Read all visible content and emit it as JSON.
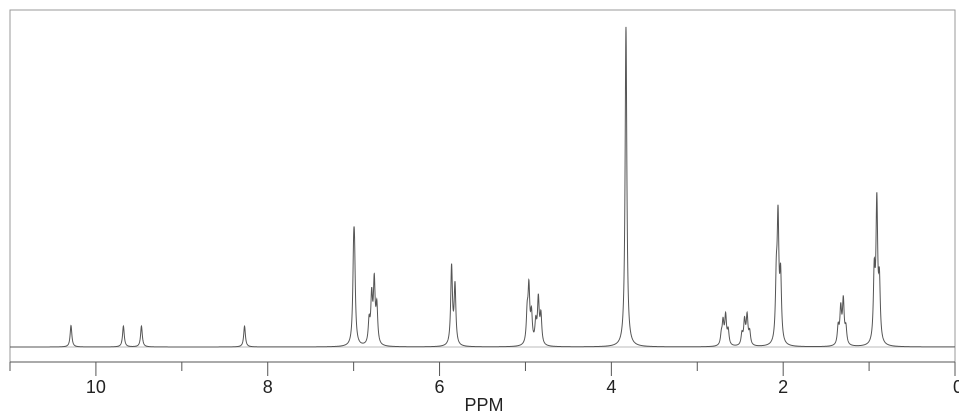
{
  "chart_data": {
    "type": "line",
    "title": "",
    "xlabel": "PPM",
    "ylabel": "",
    "xlim": [
      11,
      0
    ],
    "x_reversed": true,
    "ylim": [
      0,
      1
    ],
    "grid": false,
    "legend": "none",
    "line_color": "#555555",
    "x_major_ticks": [
      {
        "value": 10,
        "label": "10"
      },
      {
        "value": 8,
        "label": "8"
      },
      {
        "value": 6,
        "label": "6"
      },
      {
        "value": 4,
        "label": "4"
      },
      {
        "value": 2,
        "label": "2"
      },
      {
        "value": 0,
        "label": "0"
      }
    ],
    "x_minor_ticks": [
      11,
      9,
      7,
      5,
      3,
      1
    ],
    "peaks": [
      {
        "ppm": 10.29,
        "height": 0.067
      },
      {
        "ppm": 9.68,
        "height": 0.065
      },
      {
        "ppm": 9.47,
        "height": 0.065
      },
      {
        "ppm": 8.27,
        "height": 0.065
      },
      {
        "ppm": 7.0,
        "height": 0.22
      },
      {
        "ppm": 6.99,
        "height": 0.22
      },
      {
        "ppm": 6.82,
        "height": 0.07
      },
      {
        "ppm": 6.79,
        "height": 0.145
      },
      {
        "ppm": 6.76,
        "height": 0.19
      },
      {
        "ppm": 6.73,
        "height": 0.115
      },
      {
        "ppm": 5.86,
        "height": 0.245
      },
      {
        "ppm": 5.82,
        "height": 0.185
      },
      {
        "ppm": 4.98,
        "height": 0.09
      },
      {
        "ppm": 4.96,
        "height": 0.17
      },
      {
        "ppm": 4.93,
        "height": 0.09
      },
      {
        "ppm": 4.88,
        "height": 0.065
      },
      {
        "ppm": 4.85,
        "height": 0.14
      },
      {
        "ppm": 4.82,
        "height": 0.09
      },
      {
        "ppm": 3.83,
        "height": 1.0
      },
      {
        "ppm": 2.72,
        "height": 0.03
      },
      {
        "ppm": 2.7,
        "height": 0.07
      },
      {
        "ppm": 2.67,
        "height": 0.09
      },
      {
        "ppm": 2.64,
        "height": 0.045
      },
      {
        "ppm": 2.48,
        "height": 0.035
      },
      {
        "ppm": 2.45,
        "height": 0.075
      },
      {
        "ppm": 2.42,
        "height": 0.09
      },
      {
        "ppm": 2.39,
        "height": 0.04
      },
      {
        "ppm": 2.08,
        "height": 0.175
      },
      {
        "ppm": 2.06,
        "height": 0.37
      },
      {
        "ppm": 2.03,
        "height": 0.2
      },
      {
        "ppm": 1.36,
        "height": 0.055
      },
      {
        "ppm": 1.33,
        "height": 0.11
      },
      {
        "ppm": 1.3,
        "height": 0.135
      },
      {
        "ppm": 1.27,
        "height": 0.05
      },
      {
        "ppm": 0.94,
        "height": 0.21
      },
      {
        "ppm": 0.91,
        "height": 0.43
      },
      {
        "ppm": 0.88,
        "height": 0.18
      }
    ],
    "peak_halfwidth_ppm": 0.012
  }
}
